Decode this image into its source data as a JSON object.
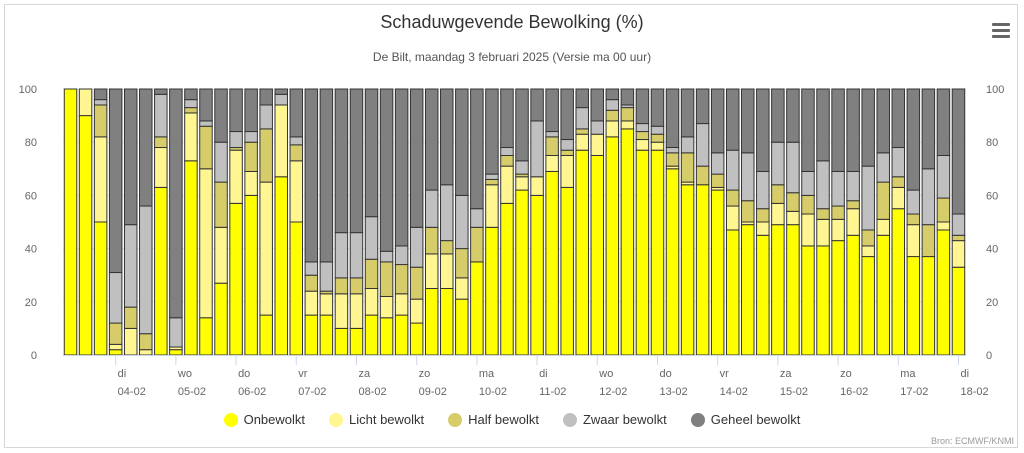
{
  "title": "Schaduwgevende Bewolking (%)",
  "subtitle": "De Bilt, maandag 3 februari 2025 (Versie ma 00 uur)",
  "credits": "Bron: ECMWF/KNMI",
  "menu_icon": "hamburger-menu-icon",
  "colors": {
    "onbewolkt": "#ffff00",
    "licht": "#fff591",
    "half": "#d6cc6a",
    "zwaar": "#c0c0c0",
    "geheel": "#808080",
    "grid": "#e6e6e6",
    "axis_text": "#666666"
  },
  "chart_data": {
    "type": "bar",
    "stacked": true,
    "ylim": [
      0,
      100
    ],
    "yticks": [
      0,
      20,
      40,
      60,
      80,
      100
    ],
    "xlabel": "",
    "ylabel": "",
    "grid": true,
    "legend_position": "bottom-center",
    "day_ticks": [
      {
        "bar": 4,
        "day": "di",
        "date": "04-02"
      },
      {
        "bar": 8,
        "day": "wo",
        "date": "05-02"
      },
      {
        "bar": 12,
        "day": "do",
        "date": "06-02"
      },
      {
        "bar": 16,
        "day": "vr",
        "date": "07-02"
      },
      {
        "bar": 20,
        "day": "za",
        "date": "08-02"
      },
      {
        "bar": 24,
        "day": "zo",
        "date": "09-02"
      },
      {
        "bar": 28,
        "day": "ma",
        "date": "10-02"
      },
      {
        "bar": 32,
        "day": "di",
        "date": "11-02"
      },
      {
        "bar": 36,
        "day": "wo",
        "date": "12-02"
      },
      {
        "bar": 40,
        "day": "do",
        "date": "13-02"
      },
      {
        "bar": 44,
        "day": "vr",
        "date": "14-02"
      },
      {
        "bar": 48,
        "day": "za",
        "date": "15-02"
      },
      {
        "bar": 52,
        "day": "zo",
        "date": "16-02"
      },
      {
        "bar": 56,
        "day": "ma",
        "date": "17-02"
      },
      {
        "bar": 60,
        "day": "di",
        "date": "18-02"
      }
    ],
    "series": [
      {
        "name": "Onbewolkt",
        "key": "onbewolkt",
        "values": [
          100,
          90,
          50,
          2,
          0,
          0,
          63,
          2,
          73,
          14,
          27,
          57,
          60,
          15,
          67,
          50,
          15,
          15,
          10,
          10,
          15,
          14,
          15,
          12,
          25,
          25,
          21,
          35,
          48,
          57,
          62,
          60,
          69,
          63,
          77,
          75,
          82,
          85,
          77,
          77,
          70,
          64,
          64,
          62,
          47,
          49,
          45,
          49,
          49,
          41,
          41,
          43,
          45,
          37,
          45,
          55,
          37,
          37,
          47,
          33
        ]
      },
      {
        "name": "Licht bewolkt",
        "key": "licht",
        "values": [
          0,
          10,
          32,
          2,
          10,
          2,
          15,
          1,
          18,
          56,
          21,
          20,
          9,
          50,
          27,
          23,
          9,
          8,
          13,
          13,
          10,
          8,
          8,
          9,
          13,
          13,
          8,
          0,
          16,
          14,
          5,
          7,
          6,
          12,
          6,
          8,
          6,
          3,
          4,
          3,
          1,
          1,
          0,
          1,
          9,
          1,
          5,
          8,
          5,
          12,
          10,
          8,
          10,
          4,
          6,
          8,
          12,
          0,
          3,
          10
        ]
      },
      {
        "name": "Half bewolkt",
        "key": "half",
        "values": [
          0,
          0,
          12,
          8,
          8,
          6,
          4,
          0,
          2,
          16,
          17,
          1,
          11,
          20,
          0,
          6,
          6,
          1,
          6,
          6,
          11,
          13,
          11,
          12,
          10,
          5,
          11,
          13,
          2,
          4,
          1,
          0,
          7,
          2,
          2,
          0,
          4,
          5,
          3,
          3,
          5,
          11,
          7,
          5,
          6,
          8,
          5,
          7,
          7,
          7,
          4,
          5,
          3,
          6,
          14,
          4,
          4,
          12,
          9,
          2
        ]
      },
      {
        "name": "Zwaar bewolkt",
        "key": "zwaar",
        "values": [
          0,
          0,
          2,
          19,
          31,
          48,
          16,
          11,
          3,
          2,
          15,
          6,
          4,
          9,
          4,
          3,
          5,
          11,
          17,
          17,
          16,
          4,
          7,
          15,
          14,
          21,
          20,
          7,
          2,
          3,
          5,
          21,
          2,
          4,
          8,
          5,
          4,
          1,
          3,
          3,
          2,
          6,
          16,
          8,
          15,
          18,
          14,
          16,
          19,
          9,
          18,
          13,
          11,
          24,
          11,
          11,
          9,
          21,
          16,
          8
        ]
      },
      {
        "name": "Geheel bewolkt",
        "key": "geheel",
        "values": [
          0,
          0,
          4,
          69,
          51,
          44,
          2,
          86,
          4,
          12,
          20,
          16,
          16,
          6,
          2,
          18,
          65,
          65,
          54,
          54,
          48,
          61,
          59,
          52,
          38,
          36,
          40,
          45,
          32,
          22,
          27,
          12,
          16,
          19,
          7,
          12,
          4,
          6,
          13,
          14,
          22,
          18,
          13,
          24,
          23,
          24,
          31,
          20,
          20,
          31,
          27,
          31,
          31,
          29,
          24,
          22,
          38,
          30,
          25,
          47
        ]
      }
    ]
  },
  "legend": {
    "position": "bottom-center"
  }
}
